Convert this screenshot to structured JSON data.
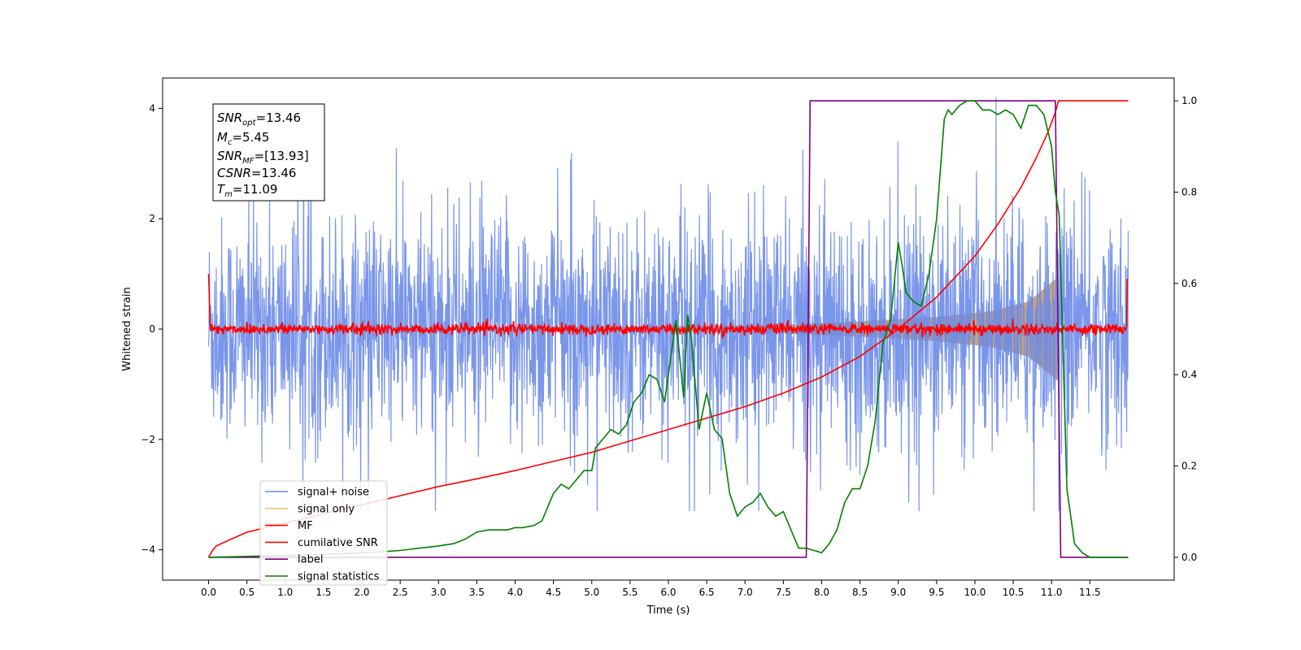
{
  "chart_data": {
    "type": "line",
    "xlabel": "Time (s)",
    "ylabel": "Whitened strain",
    "xlim": [
      -0.6,
      12.6
    ],
    "ylim": [
      -4.55,
      4.55
    ],
    "y2lim": [
      -0.05,
      1.05
    ],
    "x_ticks": [
      "0.0",
      "0.5",
      "1.0",
      "1.5",
      "2.0",
      "2.5",
      "3.0",
      "3.5",
      "4.0",
      "4.5",
      "5.0",
      "5.5",
      "6.0",
      "6.5",
      "7.0",
      "7.5",
      "8.0",
      "8.5",
      "9.0",
      "9.5",
      "10.0",
      "10.5",
      "11.0",
      "11.5"
    ],
    "y_ticks": [
      "4",
      "2",
      "0",
      "−2",
      "−4"
    ],
    "y2_ticks": [
      "1.0",
      "0.8",
      "0.6",
      "0.4",
      "0.2",
      "0.0"
    ],
    "annotation": {
      "snr_opt": "=13.46",
      "mc": "=5.45",
      "snr_mf": "=[13.93]",
      "csnr": "=13.46",
      "tm": "=11.09"
    },
    "legend_position": "lower-left",
    "series": [
      {
        "name": "signal+ noise",
        "color": "#6b8be8",
        "axis": "left",
        "description_values": {
          "t_start": 0.0,
          "t_end": 12.0,
          "approx_amplitude": 2.5
        }
      },
      {
        "name": "signal only",
        "color": "#f5c26b",
        "axis": "left",
        "description_values": {
          "t_start": 0.0,
          "t_end": 11.09,
          "envelope": [
            [
              0.0,
              0.0
            ],
            [
              6.0,
              0.05
            ],
            [
              7.5,
              0.08
            ],
            [
              8.5,
              0.14
            ],
            [
              9.5,
              0.22
            ],
            [
              10.2,
              0.32
            ],
            [
              10.7,
              0.5
            ],
            [
              11.09,
              0.95
            ]
          ]
        }
      },
      {
        "name": "MF",
        "color": "#ff0000",
        "axis": "left",
        "description_values": {
          "t_start": 0.0,
          "t_end": 12.0,
          "approx_amplitude": 0.1
        }
      },
      {
        "name": "cumilative SNR",
        "color": "#ff0000",
        "axis": "right",
        "x": [
          0.0,
          0.05,
          0.1,
          0.3,
          0.5,
          1.0,
          1.5,
          2.0,
          2.5,
          3.0,
          3.5,
          4.0,
          4.5,
          5.0,
          5.5,
          6.0,
          6.5,
          7.0,
          7.5,
          8.0,
          8.5,
          9.0,
          9.5,
          10.0,
          10.3,
          10.6,
          10.8,
          10.95,
          11.05,
          11.09,
          11.1,
          12.0
        ],
        "values": [
          0.0,
          0.015,
          0.025,
          0.04,
          0.055,
          0.075,
          0.095,
          0.115,
          0.135,
          0.155,
          0.172,
          0.19,
          0.21,
          0.23,
          0.255,
          0.28,
          0.305,
          0.33,
          0.36,
          0.395,
          0.44,
          0.5,
          0.57,
          0.66,
          0.73,
          0.81,
          0.875,
          0.93,
          0.975,
          1.0,
          1.0,
          1.0
        ]
      },
      {
        "name": "label",
        "color": "#800080",
        "axis": "right",
        "x": [
          0.0,
          7.8,
          7.85,
          11.05,
          11.12,
          12.0
        ],
        "values": [
          0.0,
          0.0,
          1.0,
          1.0,
          0.0,
          0.0
        ]
      },
      {
        "name": "signal statistics",
        "color": "#008000",
        "axis": "right",
        "x": [
          0.0,
          0.5,
          1.0,
          1.5,
          2.0,
          2.25,
          2.5,
          2.75,
          3.0,
          3.2,
          3.35,
          3.5,
          3.65,
          3.8,
          3.9,
          4.0,
          4.1,
          4.25,
          4.35,
          4.5,
          4.6,
          4.7,
          4.8,
          4.9,
          5.0,
          5.05,
          5.15,
          5.25,
          5.35,
          5.45,
          5.55,
          5.65,
          5.75,
          5.85,
          5.95,
          6.05,
          6.1,
          6.2,
          6.25,
          6.3,
          6.4,
          6.5,
          6.6,
          6.7,
          6.8,
          6.9,
          7.0,
          7.1,
          7.2,
          7.3,
          7.4,
          7.5,
          7.6,
          7.7,
          7.8,
          7.9,
          8.0,
          8.1,
          8.2,
          8.3,
          8.4,
          8.5,
          8.6,
          8.7,
          8.8,
          8.9,
          9.0,
          9.05,
          9.1,
          9.2,
          9.3,
          9.4,
          9.5,
          9.6,
          9.65,
          9.7,
          9.8,
          9.9,
          10.0,
          10.1,
          10.2,
          10.3,
          10.4,
          10.5,
          10.6,
          10.7,
          10.8,
          10.9,
          11.0,
          11.05,
          11.1,
          11.2,
          11.3,
          11.4,
          11.5,
          11.6,
          11.7,
          11.8,
          11.9,
          12.0
        ],
        "values": [
          0.0,
          0.002,
          0.004,
          0.006,
          0.01,
          0.012,
          0.015,
          0.02,
          0.025,
          0.03,
          0.04,
          0.055,
          0.06,
          0.06,
          0.06,
          0.065,
          0.065,
          0.07,
          0.08,
          0.14,
          0.16,
          0.15,
          0.17,
          0.19,
          0.19,
          0.24,
          0.26,
          0.28,
          0.27,
          0.29,
          0.34,
          0.36,
          0.4,
          0.39,
          0.34,
          0.46,
          0.52,
          0.35,
          0.53,
          0.48,
          0.28,
          0.36,
          0.28,
          0.26,
          0.14,
          0.09,
          0.11,
          0.12,
          0.14,
          0.11,
          0.09,
          0.1,
          0.06,
          0.02,
          0.02,
          0.015,
          0.01,
          0.03,
          0.06,
          0.12,
          0.15,
          0.15,
          0.2,
          0.3,
          0.47,
          0.52,
          0.69,
          0.64,
          0.58,
          0.56,
          0.55,
          0.62,
          0.74,
          0.96,
          0.98,
          0.97,
          0.99,
          1.0,
          1.0,
          0.98,
          0.98,
          0.97,
          0.98,
          0.97,
          0.94,
          0.99,
          0.99,
          0.97,
          0.9,
          0.8,
          0.75,
          0.15,
          0.03,
          0.01,
          0.0,
          0.0,
          0.0,
          0.0,
          0.0,
          0.0
        ]
      }
    ]
  }
}
